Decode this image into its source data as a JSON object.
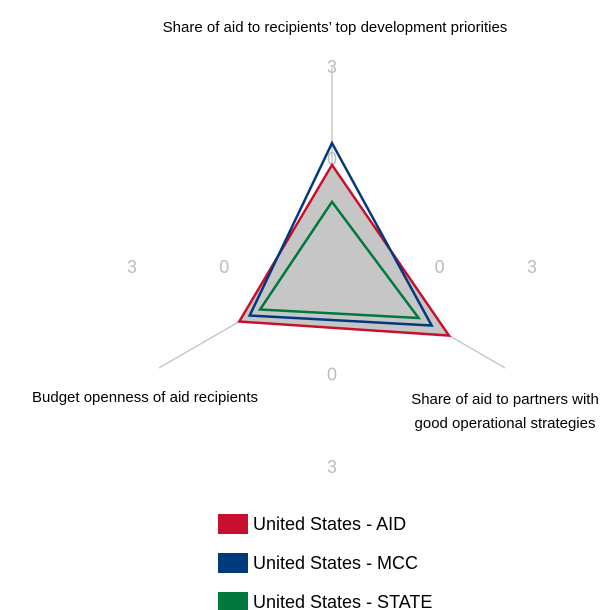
{
  "chart_data": {
    "type": "radar",
    "categories": [
      "Share of aid to recipients’ top development priorities",
      "Share of aid to partners with good operational strategies",
      "Budget openness of aid recipients"
    ],
    "series": [
      {
        "name": "United States - AID",
        "color": "#c8102e",
        "values": [
          -0.15,
          0.89,
          -0.02
        ]
      },
      {
        "name": "United States - MCC",
        "color": "#003a7d",
        "values": [
          0.56,
          0.24,
          -0.41
        ]
      },
      {
        "name": "United States - STATE",
        "color": "#00783e",
        "values": [
          -1.35,
          -0.25,
          -0.8
        ]
      }
    ],
    "rlim": [
      -3.5,
      3
    ],
    "rticks": [
      0,
      3
    ],
    "fill_color": "#c6c6c6"
  }
}
